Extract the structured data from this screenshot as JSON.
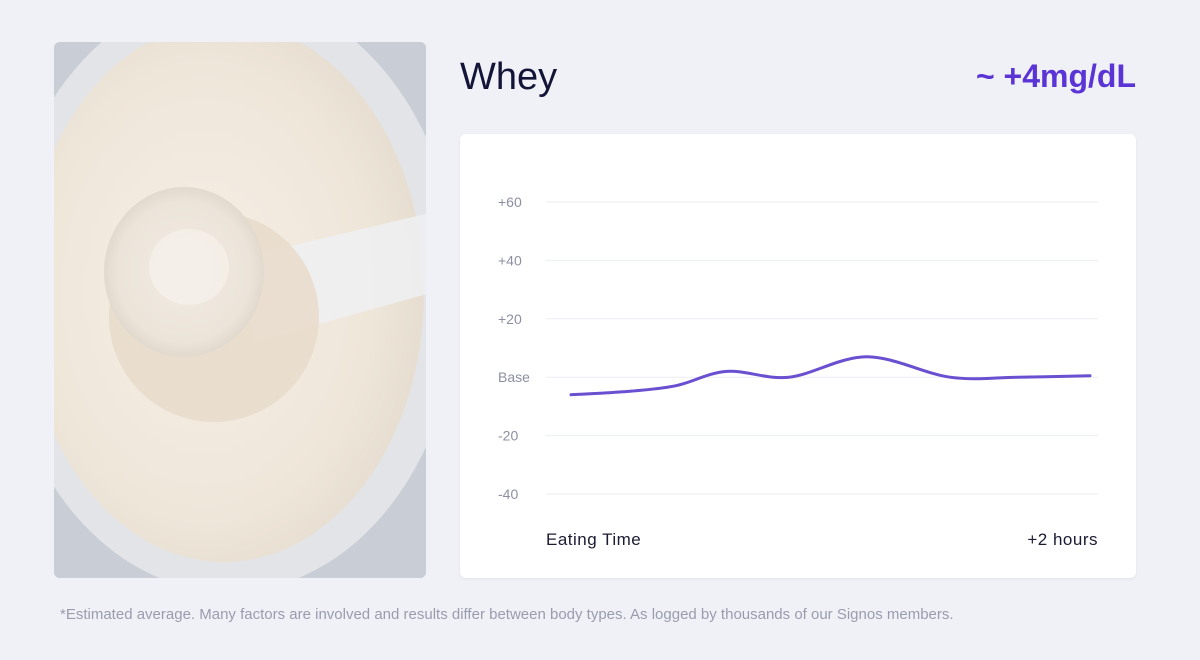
{
  "food": {
    "name": "Whey",
    "glucose_change": "~ +4mg/dL",
    "image_icon": "whey-protein-powder-scoop-photo"
  },
  "chart_data": {
    "type": "line",
    "x_labels": [
      "Eating Time",
      "+2 hours"
    ],
    "y_ticks": [
      "+60",
      "+40",
      "+20",
      "Base",
      "-20",
      "-40"
    ],
    "y_tick_values": [
      60,
      40,
      20,
      0,
      -20,
      -40
    ],
    "ylim": [
      -40,
      60
    ],
    "x": [
      0,
      0.1,
      0.2,
      0.3,
      0.42,
      0.57,
      0.73,
      0.86,
      1.0
    ],
    "series": [
      {
        "values": [
          -6,
          -5,
          -3,
          2,
          0,
          7,
          0,
          0,
          0.5
        ]
      }
    ],
    "grid": true,
    "line_color": "#6a4fd0"
  },
  "footnote": "*Estimated average. Many factors are involved and results differ between body types. As logged by thousands of our Signos members."
}
